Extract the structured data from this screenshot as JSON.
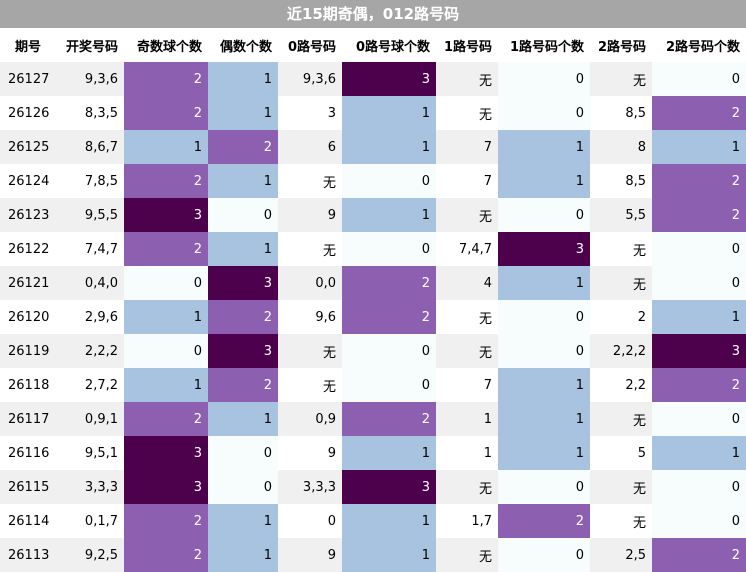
{
  "title": "近15期奇偶，012路号码",
  "headers": [
    "期号",
    "开奖号码",
    "奇数球个数",
    "偶数个数",
    "0路号码",
    "0路号球个数",
    "1路号码",
    "1路号码个数",
    "2路号码",
    "2路号码个数"
  ],
  "colors": {
    "c0": "#f7fcfd",
    "c1": "#a8c3df",
    "c2": "#8c5fb0",
    "c3": "#4d004b"
  },
  "rows": [
    [
      "26127",
      "9,3,6",
      "2",
      "1",
      "9,3,6",
      "3",
      "无",
      "0",
      "无",
      "0"
    ],
    [
      "26126",
      "8,3,5",
      "2",
      "1",
      "3",
      "1",
      "无",
      "0",
      "8,5",
      "2"
    ],
    [
      "26125",
      "8,6,7",
      "1",
      "2",
      "6",
      "1",
      "7",
      "1",
      "8",
      "1"
    ],
    [
      "26124",
      "7,8,5",
      "2",
      "1",
      "无",
      "0",
      "7",
      "1",
      "8,5",
      "2"
    ],
    [
      "26123",
      "9,5,5",
      "3",
      "0",
      "9",
      "1",
      "无",
      "0",
      "5,5",
      "2"
    ],
    [
      "26122",
      "7,4,7",
      "2",
      "1",
      "无",
      "0",
      "7,4,7",
      "3",
      "无",
      "0"
    ],
    [
      "26121",
      "0,4,0",
      "0",
      "3",
      "0,0",
      "2",
      "4",
      "1",
      "无",
      "0"
    ],
    [
      "26120",
      "2,9,6",
      "1",
      "2",
      "9,6",
      "2",
      "无",
      "0",
      "2",
      "1"
    ],
    [
      "26119",
      "2,2,2",
      "0",
      "3",
      "无",
      "0",
      "无",
      "0",
      "2,2,2",
      "3"
    ],
    [
      "26118",
      "2,7,2",
      "1",
      "2",
      "无",
      "0",
      "7",
      "1",
      "2,2",
      "2"
    ],
    [
      "26117",
      "0,9,1",
      "2",
      "1",
      "0,9",
      "2",
      "1",
      "1",
      "无",
      "0"
    ],
    [
      "26116",
      "9,5,1",
      "3",
      "0",
      "9",
      "1",
      "1",
      "1",
      "5",
      "1"
    ],
    [
      "26115",
      "3,3,3",
      "3",
      "0",
      "3,3,3",
      "3",
      "无",
      "0",
      "无",
      "0"
    ],
    [
      "26114",
      "0,1,7",
      "2",
      "1",
      "0",
      "1",
      "1,7",
      "2",
      "无",
      "0"
    ],
    [
      "26113",
      "9,2,5",
      "2",
      "1",
      "9",
      "1",
      "无",
      "0",
      "2,5",
      "2"
    ]
  ]
}
